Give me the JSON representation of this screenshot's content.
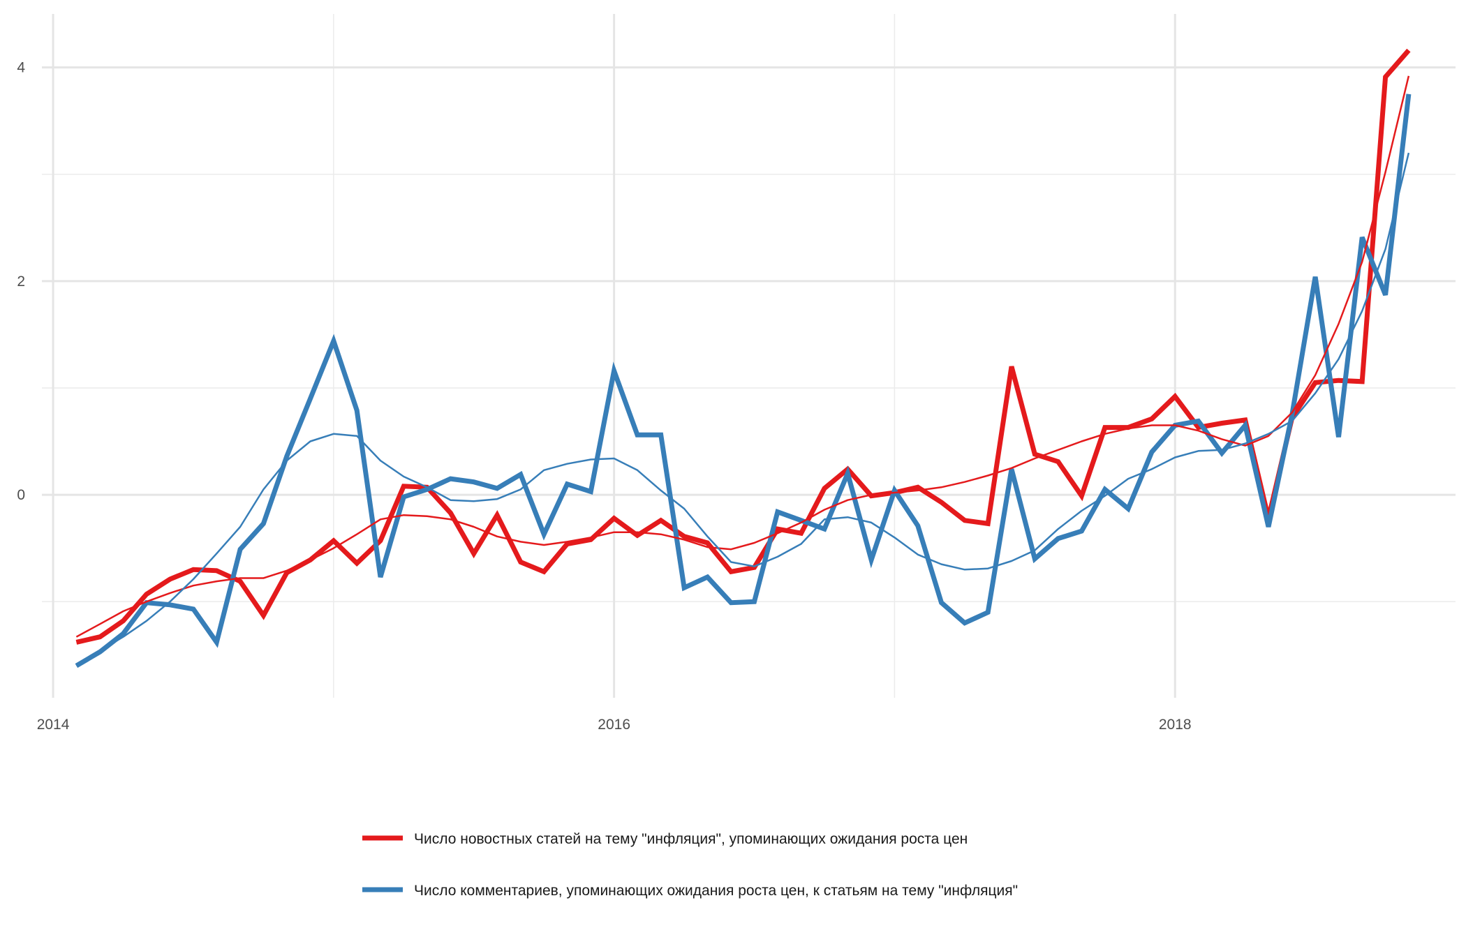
{
  "chart_data": {
    "type": "line",
    "title": "",
    "xlabel": "",
    "ylabel": "",
    "grid": true,
    "legend_position": "bottom",
    "xlim": [
      2013.96,
      2019.0
    ],
    "ylim": [
      -1.9,
      4.5
    ],
    "x_ticks": [
      2014,
      2016,
      2018
    ],
    "x_tick_labels": [
      "2014",
      "2016",
      "2018"
    ],
    "y_ticks": [
      0,
      2,
      4
    ],
    "y_tick_labels": [
      "0",
      "2",
      "4"
    ],
    "x": [
      2014.083,
      2014.167,
      2014.25,
      2014.333,
      2014.417,
      2014.5,
      2014.583,
      2014.667,
      2014.75,
      2014.833,
      2014.917,
      2015.0,
      2015.083,
      2015.167,
      2015.25,
      2015.333,
      2015.417,
      2015.5,
      2015.583,
      2015.667,
      2015.75,
      2015.833,
      2015.917,
      2016.0,
      2016.083,
      2016.167,
      2016.25,
      2016.333,
      2016.417,
      2016.5,
      2016.583,
      2016.667,
      2016.75,
      2016.833,
      2016.917,
      2017.0,
      2017.083,
      2017.167,
      2017.25,
      2017.333,
      2017.417,
      2017.5,
      2017.583,
      2017.667,
      2017.75,
      2017.833,
      2017.917,
      2018.0,
      2018.083,
      2018.167,
      2018.25,
      2018.333,
      2018.417,
      2018.5,
      2018.583,
      2018.667,
      2018.75,
      2018.833
    ],
    "series": [
      {
        "name": "Число новостных статей на тему \"инфляция\", упоминающих ожидания роста цен",
        "color": "#e41a1c",
        "values": [
          -1.38,
          -1.33,
          -1.18,
          -0.93,
          -0.79,
          -0.7,
          -0.71,
          -0.81,
          -1.13,
          -0.73,
          -0.61,
          -0.43,
          -0.64,
          -0.43,
          0.08,
          0.07,
          -0.17,
          -0.55,
          -0.19,
          -0.63,
          -0.72,
          -0.46,
          -0.42,
          -0.22,
          -0.38,
          -0.24,
          -0.39,
          -0.45,
          -0.72,
          -0.68,
          -0.32,
          -0.36,
          0.06,
          0.24,
          -0.01,
          0.02,
          0.07,
          -0.07,
          -0.24,
          -0.27,
          1.2,
          0.38,
          0.31,
          -0.01,
          0.63,
          0.63,
          0.71,
          0.92,
          0.63,
          0.67,
          0.7,
          -0.22,
          0.72,
          1.05,
          1.07,
          1.06,
          3.91,
          4.16
        ],
        "smooth": [
          -1.33,
          -1.21,
          -1.09,
          -1.0,
          -0.92,
          -0.85,
          -0.81,
          -0.78,
          -0.78,
          -0.71,
          -0.61,
          -0.5,
          -0.37,
          -0.23,
          -0.19,
          -0.2,
          -0.23,
          -0.3,
          -0.39,
          -0.44,
          -0.47,
          -0.44,
          -0.4,
          -0.35,
          -0.35,
          -0.37,
          -0.42,
          -0.49,
          -0.51,
          -0.45,
          -0.36,
          -0.26,
          -0.14,
          -0.05,
          0.0,
          0.02,
          0.04,
          0.07,
          0.12,
          0.18,
          0.25,
          0.34,
          0.42,
          0.5,
          0.57,
          0.62,
          0.65,
          0.65,
          0.6,
          0.52,
          0.46,
          0.55,
          0.77,
          1.12,
          1.6,
          2.18,
          3.02,
          3.92
        ]
      },
      {
        "name": "Число комментариев, упоминающих ожидания роста цен, к статьям на тему \"инфляция\"",
        "color": "#377eb8",
        "values": [
          -1.6,
          -1.47,
          -1.3,
          -1.01,
          -1.03,
          -1.07,
          -1.38,
          -0.51,
          -0.27,
          0.36,
          0.9,
          1.44,
          0.79,
          -0.77,
          -0.02,
          0.05,
          0.15,
          0.12,
          0.06,
          0.19,
          -0.37,
          0.1,
          0.03,
          1.16,
          0.56,
          0.56,
          -0.87,
          -0.77,
          -1.01,
          -1.0,
          -0.16,
          -0.24,
          -0.32,
          0.2,
          -0.61,
          0.04,
          -0.29,
          -1.01,
          -1.2,
          -1.1,
          0.24,
          -0.6,
          -0.41,
          -0.34,
          0.05,
          -0.13,
          0.4,
          0.65,
          0.69,
          0.39,
          0.65,
          -0.3,
          0.75,
          2.04,
          0.54,
          2.41,
          1.87,
          3.75
        ],
        "smooth": [
          -1.6,
          -1.46,
          -1.33,
          -1.18,
          -1.0,
          -0.79,
          -0.55,
          -0.3,
          0.05,
          0.32,
          0.5,
          0.57,
          0.55,
          0.32,
          0.17,
          0.07,
          -0.05,
          -0.06,
          -0.04,
          0.05,
          0.23,
          0.29,
          0.33,
          0.34,
          0.23,
          0.04,
          -0.13,
          -0.39,
          -0.63,
          -0.67,
          -0.58,
          -0.46,
          -0.23,
          -0.21,
          -0.26,
          -0.4,
          -0.56,
          -0.65,
          -0.7,
          -0.69,
          -0.62,
          -0.52,
          -0.32,
          -0.15,
          -0.01,
          0.15,
          0.24,
          0.35,
          0.41,
          0.42,
          0.48,
          0.57,
          0.69,
          0.95,
          1.27,
          1.72,
          2.3,
          3.2
        ]
      }
    ]
  }
}
